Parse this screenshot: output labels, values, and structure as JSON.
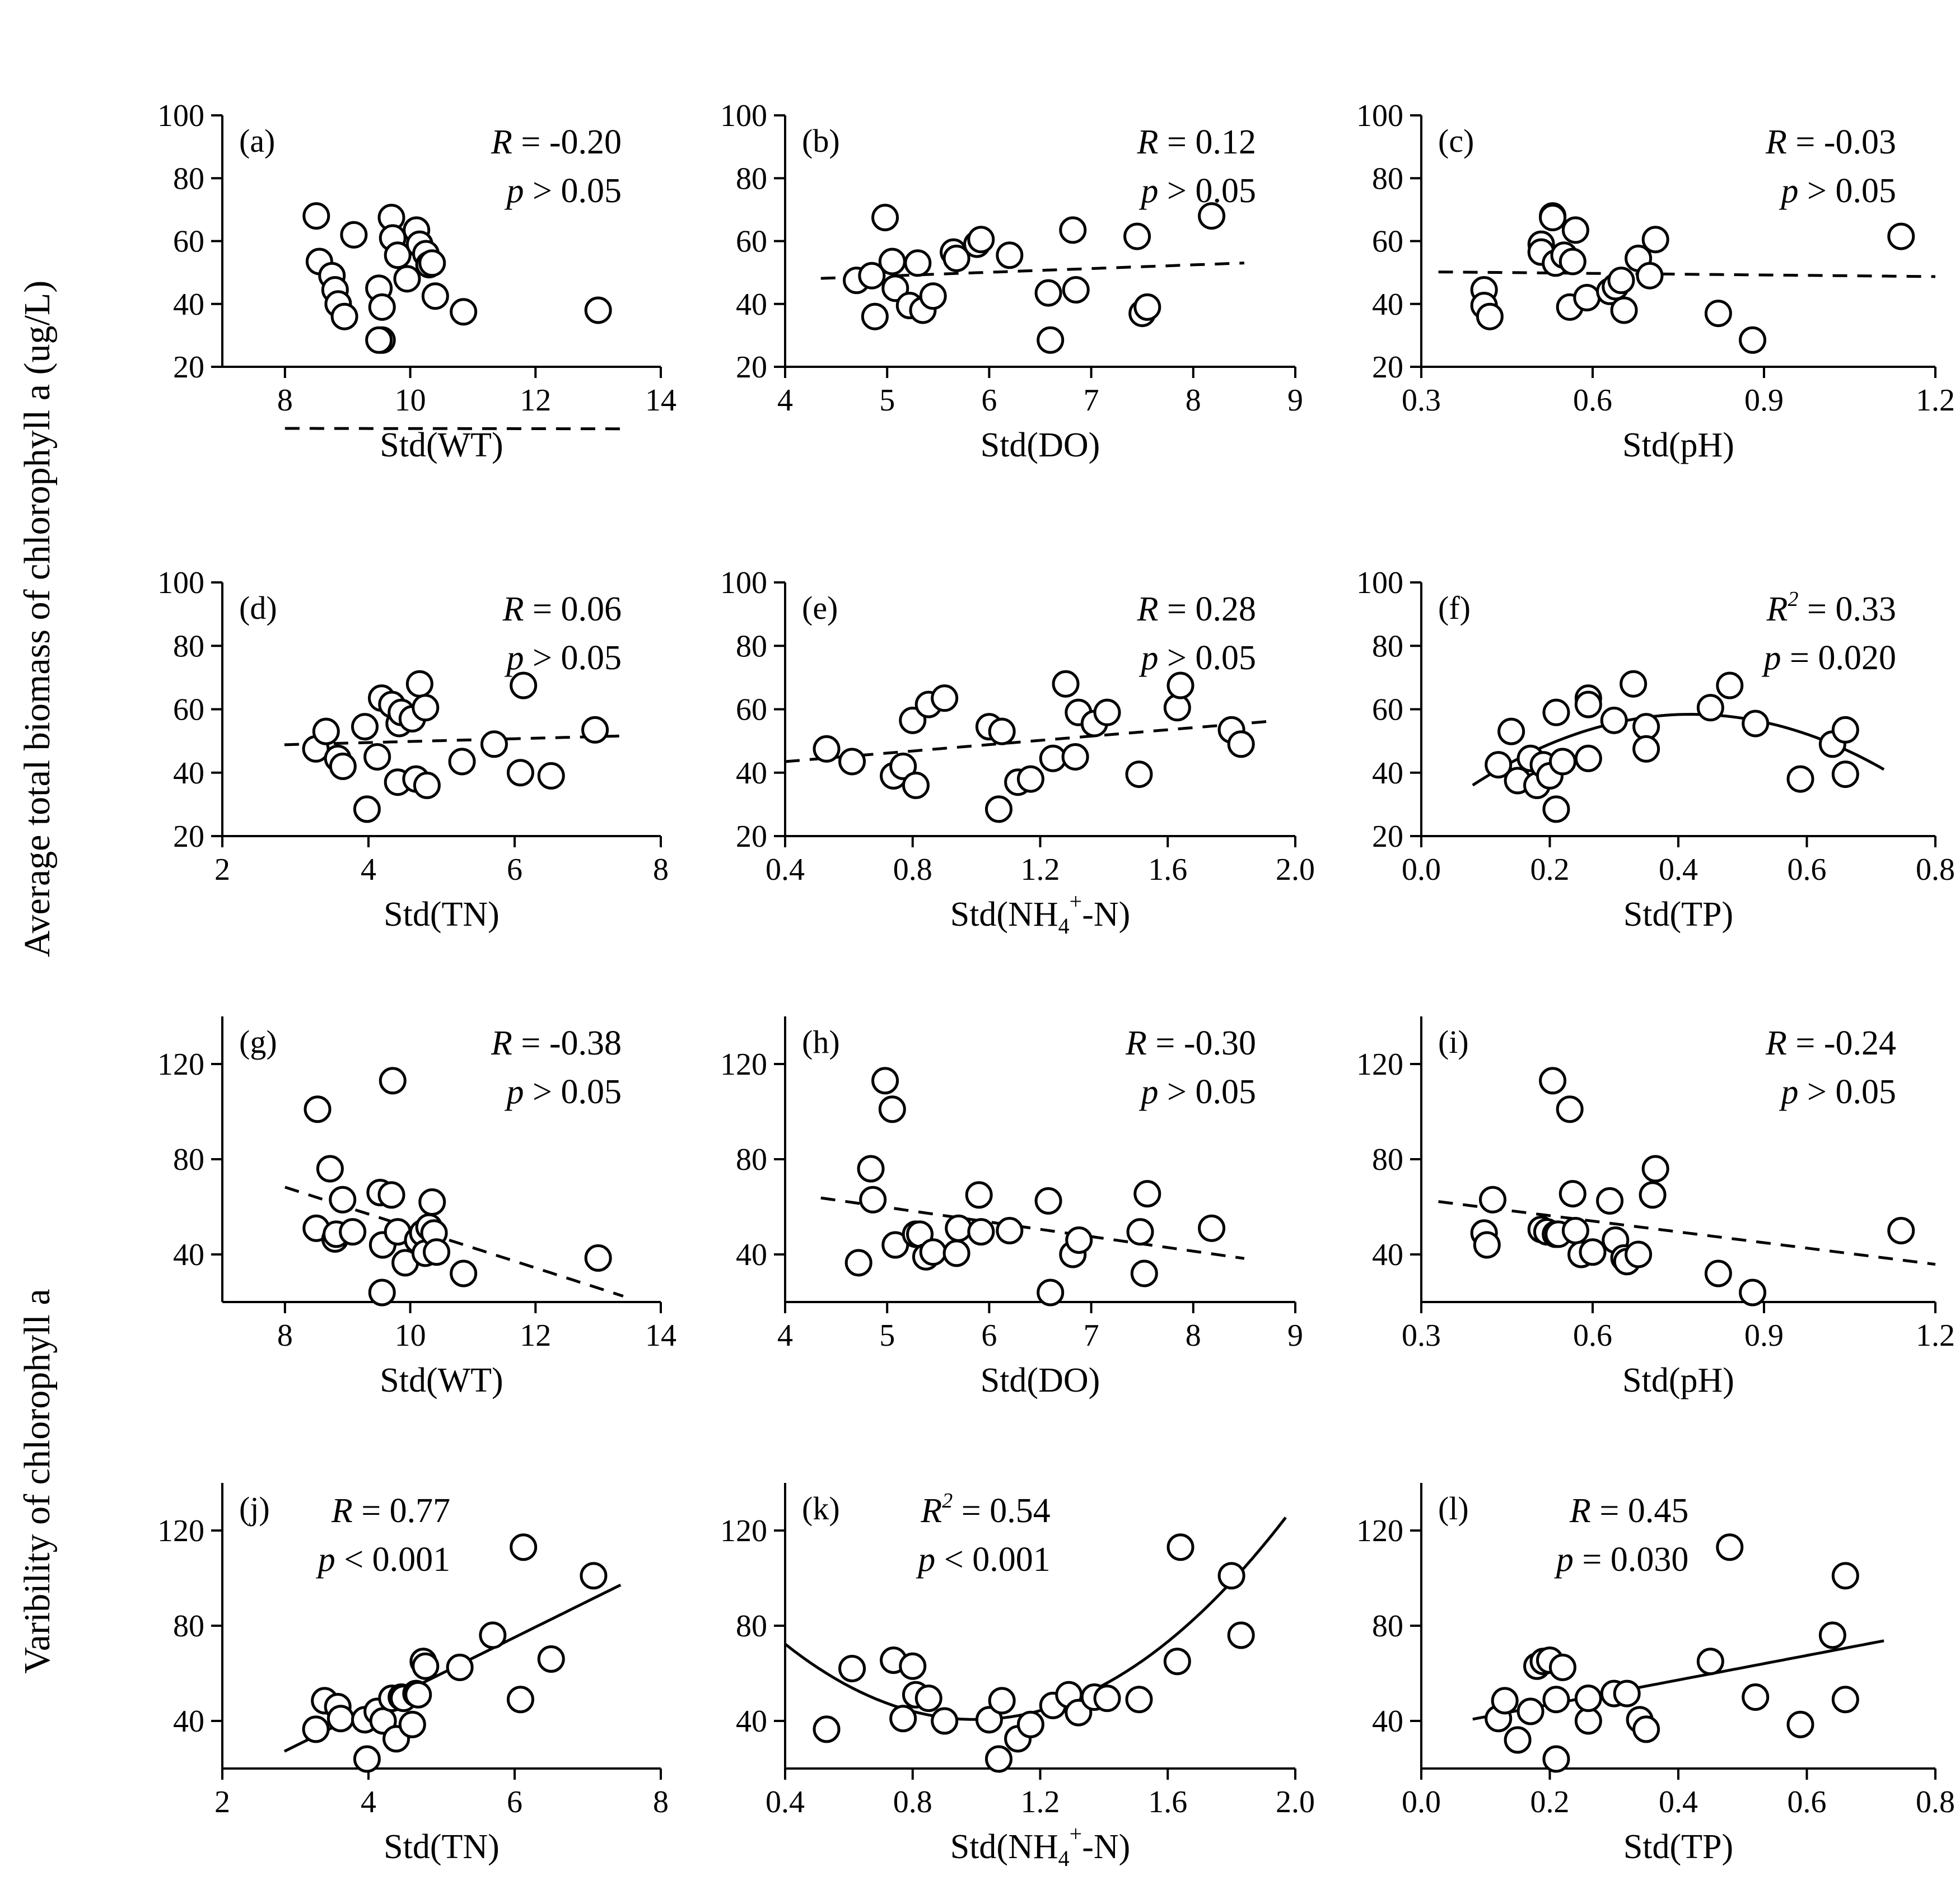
{
  "figure": {
    "ylabel_top": "Average total biomass of chlorophyll a (ug/L)",
    "ylabel_bottom": "Varibility of chlorophyll a"
  },
  "chart_data": [
    {
      "id": "a",
      "type": "scatter",
      "label": "(a)",
      "xlabel": "Std(WT)",
      "xlim": [
        7,
        14
      ],
      "ylim": [
        20,
        100
      ],
      "xticks": [
        8,
        10,
        12,
        14
      ],
      "xtick_labels": [
        "8",
        "10",
        "12",
        "14"
      ],
      "yticks": [
        20,
        40,
        60,
        80,
        100
      ],
      "ytick_labels": [
        "20",
        "40",
        "60",
        "80",
        "100"
      ],
      "stat1": "R = -0.20",
      "stat2": "p > 0.05",
      "x": [
        8.5,
        8.55,
        8.75,
        8.8,
        8.85,
        8.95,
        9.1,
        9.5,
        9.55,
        9.55,
        9.7,
        9.72,
        9.8,
        9.95,
        10.1,
        10.15,
        10.25,
        10.3,
        10.35,
        10.4,
        10.85,
        13.0,
        9.5
      ],
      "y": [
        68,
        53.5,
        49,
        44.5,
        40,
        36,
        62,
        45,
        39,
        28.5,
        67.5,
        61,
        55.5,
        48,
        63.5,
        59,
        56,
        52.5,
        53,
        42.5,
        37.5,
        38,
        28.5
      ],
      "fit": {
        "kind": "linear",
        "style": "dashed",
        "x_range": [
          8.0,
          13.4
        ],
        "coef": [
          0.585,
          -0.02274
        ]
      }
    },
    {
      "id": "b",
      "type": "scatter",
      "label": "(b)",
      "xlabel": "Std(DO)",
      "xlim": [
        4,
        9
      ],
      "ylim": [
        20,
        100
      ],
      "xticks": [
        4,
        5,
        6,
        7,
        8,
        9
      ],
      "xtick_labels": [
        "4",
        "5",
        "6",
        "7",
        "8",
        "9"
      ],
      "yticks": [
        20,
        40,
        60,
        80,
        100
      ],
      "ytick_labels": [
        "20",
        "40",
        "60",
        "80",
        "100"
      ],
      "stat1": "R = 0.12",
      "stat2": "p > 0.05",
      "x": [
        4.7,
        4.85,
        4.88,
        4.98,
        5.05,
        5.08,
        5.22,
        5.3,
        5.35,
        5.45,
        5.65,
        5.68,
        5.88,
        5.92,
        6.2,
        6.58,
        6.6,
        6.82,
        6.85,
        7.45,
        7.5,
        7.55,
        8.18
      ],
      "y": [
        47.5,
        49,
        36,
        67.5,
        53.5,
        45,
        39.5,
        53,
        38,
        42.5,
        56.5,
        54.5,
        59,
        60.5,
        55.5,
        43.5,
        28.5,
        63.5,
        44.5,
        61.5,
        37,
        39,
        68
      ],
      "fit": {
        "kind": "linear",
        "style": "dashed",
        "x_range": [
          4.35,
          8.5
        ],
        "coef": [
          43.0,
          1.18
        ]
      }
    },
    {
      "id": "c",
      "type": "scatter",
      "label": "(c)",
      "xlabel": "Std(pH)",
      "xlim": [
        0.3,
        1.2
      ],
      "ylim": [
        20,
        100
      ],
      "xticks": [
        0.3,
        0.6,
        0.9,
        1.2
      ],
      "xtick_labels": [
        "0.3",
        "0.6",
        "0.9",
        "1.2"
      ],
      "yticks": [
        20,
        40,
        60,
        80,
        100
      ],
      "ytick_labels": [
        "20",
        "40",
        "60",
        "80",
        "100"
      ],
      "stat1": "R = -0.03",
      "stat2": "p > 0.05",
      "x": [
        0.41,
        0.41,
        0.42,
        0.51,
        0.51,
        0.53,
        0.53,
        0.535,
        0.55,
        0.56,
        0.565,
        0.57,
        0.59,
        0.63,
        0.64,
        0.65,
        0.655,
        0.68,
        0.7,
        0.71,
        0.82,
        0.88,
        1.14
      ],
      "y": [
        44.5,
        39.5,
        36,
        59,
        56.5,
        68,
        67.5,
        53,
        55.5,
        39,
        53.5,
        63.5,
        42,
        44,
        45.5,
        47.5,
        38,
        54.5,
        49,
        60.5,
        37,
        28.5,
        61.5
      ],
      "fit": {
        "kind": "linear",
        "style": "dashed",
        "x_range": [
          0.33,
          1.2
        ],
        "coef": [
          50.75,
          -1.7
        ]
      }
    },
    {
      "id": "d",
      "type": "scatter",
      "label": "(d)",
      "xlabel": "Std(TN)",
      "xlim": [
        2,
        8
      ],
      "ylim": [
        20,
        100
      ],
      "xticks": [
        2,
        4,
        6,
        8
      ],
      "xtick_labels": [
        "2",
        "4",
        "6",
        "8"
      ],
      "yticks": [
        20,
        40,
        60,
        80,
        100
      ],
      "ytick_labels": [
        "20",
        "40",
        "60",
        "80",
        "100"
      ],
      "stat1": "R = 0.06",
      "stat2": "p > 0.05",
      "x": [
        3.28,
        3.42,
        3.58,
        3.65,
        3.95,
        3.98,
        4.12,
        4.18,
        4.32,
        4.4,
        4.42,
        4.45,
        4.6,
        4.65,
        4.7,
        4.78,
        4.8,
        5.28,
        5.72,
        6.08,
        6.12,
        6.5,
        7.1
      ],
      "y": [
        47.5,
        53,
        44.5,
        42,
        54.5,
        28.5,
        45,
        63.5,
        61.5,
        37,
        55.5,
        59,
        57,
        38,
        68,
        60.5,
        36,
        43.5,
        49,
        40,
        67.5,
        39,
        53.5
      ],
      "fit": {
        "kind": "linear",
        "style": "dashed",
        "x_range": [
          2.85,
          7.45
        ],
        "coef": [
          47.1,
          0.6
        ]
      }
    },
    {
      "id": "e",
      "type": "scatter",
      "label": "(e)",
      "xlabel": "Std(NH4+-N)",
      "xlim": [
        0.4,
        2.0
      ],
      "ylim": [
        20,
        100
      ],
      "xticks": [
        0.4,
        0.8,
        1.2,
        1.6,
        2.0
      ],
      "xtick_labels": [
        "0.4",
        "0.8",
        "1.2",
        "1.6",
        "2.0"
      ],
      "yticks": [
        20,
        40,
        60,
        80,
        100
      ],
      "ytick_labels": [
        "20",
        "40",
        "60",
        "80",
        "100"
      ],
      "stat1": "R = 0.28",
      "stat2": "p > 0.05",
      "x": [
        0.53,
        0.61,
        0.74,
        0.77,
        0.8,
        0.81,
        0.85,
        0.9,
        1.04,
        1.07,
        1.08,
        1.13,
        1.17,
        1.24,
        1.28,
        1.31,
        1.32,
        1.37,
        1.41,
        1.51,
        1.63,
        1.64,
        1.8,
        1.83
      ],
      "y": [
        47.5,
        43.5,
        39,
        42,
        56.5,
        36,
        61.5,
        63.5,
        54.5,
        28.5,
        53,
        37,
        38,
        44.5,
        68,
        45,
        59,
        55.5,
        59,
        39.5,
        60.5,
        67.5,
        53.5,
        49
      ],
      "fit": {
        "kind": "linear",
        "style": "dashed",
        "x_range": [
          0.4,
          1.93
        ],
        "coef": [
          40.15,
          8.36
        ]
      }
    },
    {
      "id": "f",
      "type": "scatter",
      "label": "(f)",
      "xlabel": "Std(TP)",
      "xlim": [
        0.0,
        0.8
      ],
      "ylim": [
        20,
        100
      ],
      "xticks": [
        0.0,
        0.2,
        0.4,
        0.6,
        0.8
      ],
      "xtick_labels": [
        "0.0",
        "0.2",
        "0.4",
        "0.6",
        "0.8"
      ],
      "yticks": [
        20,
        40,
        60,
        80,
        100
      ],
      "ytick_labels": [
        "20",
        "40",
        "60",
        "80",
        "100"
      ],
      "stat1": "R2 = 0.33",
      "stat2": "p = 0.020",
      "x": [
        0.12,
        0.14,
        0.15,
        0.17,
        0.18,
        0.19,
        0.2,
        0.21,
        0.21,
        0.22,
        0.26,
        0.26,
        0.26,
        0.3,
        0.33,
        0.35,
        0.35,
        0.45,
        0.48,
        0.52,
        0.59,
        0.64,
        0.66,
        0.66
      ],
      "y": [
        42.5,
        53,
        37.5,
        44.5,
        36,
        42.5,
        39,
        59,
        28.5,
        43.5,
        63.5,
        61.5,
        44.5,
        56.5,
        68,
        54.5,
        47.5,
        60.5,
        67.5,
        55.5,
        38,
        49,
        39.5,
        53.5
      ],
      "fit": {
        "kind": "quadratic",
        "style": "solid",
        "x_range": [
          0.08,
          0.72
        ],
        "coef": [
          24.3,
          162.4,
          -193.3
        ]
      }
    },
    {
      "id": "g",
      "type": "scatter",
      "label": "(g)",
      "xlabel": "Std(WT)",
      "xlim": [
        7,
        14
      ],
      "ylim": [
        20,
        140
      ],
      "xticks": [
        8,
        10,
        12,
        14
      ],
      "xtick_labels": [
        "8",
        "10",
        "12",
        "14"
      ],
      "yticks": [
        40,
        80,
        120
      ],
      "ytick_labels": [
        "40",
        "80",
        "120"
      ],
      "stat1": "R = -0.38",
      "stat2": "p > 0.05",
      "x": [
        8.5,
        8.52,
        8.72,
        8.8,
        8.82,
        8.92,
        9.08,
        9.52,
        9.55,
        9.56,
        9.7,
        9.72,
        9.8,
        9.92,
        10.12,
        10.2,
        10.24,
        10.3,
        10.35,
        10.38,
        10.42,
        10.85,
        13.0
      ],
      "y": [
        51,
        101,
        76,
        46.5,
        48.5,
        63,
        49.5,
        66,
        24,
        44,
        65,
        113,
        49.5,
        36.5,
        46,
        49,
        40.5,
        51.5,
        62,
        49,
        41,
        32,
        38.5
      ],
      "fit": {
        "kind": "linear",
        "style": "dashed",
        "x_range": [
          8.0,
          13.4
        ],
        "coef": [
          136.1,
          -8.48
        ]
      }
    },
    {
      "id": "h",
      "type": "scatter",
      "label": "(h)",
      "xlabel": "Std(DO)",
      "xlim": [
        4,
        9
      ],
      "ylim": [
        20,
        140
      ],
      "xticks": [
        4,
        5,
        6,
        7,
        8,
        9
      ],
      "xtick_labels": [
        "4",
        "5",
        "6",
        "7",
        "8",
        "9"
      ],
      "yticks": [
        40,
        80,
        120
      ],
      "ytick_labels": [
        "40",
        "80",
        "120"
      ],
      "stat1": "R = -0.30",
      "stat2": "p > 0.05",
      "x": [
        4.72,
        4.84,
        4.86,
        4.98,
        5.05,
        5.08,
        5.28,
        5.32,
        5.38,
        5.45,
        5.68,
        5.7,
        5.9,
        5.92,
        6.2,
        6.58,
        6.6,
        6.82,
        6.88,
        7.48,
        7.52,
        7.55,
        8.18
      ],
      "y": [
        36.5,
        76,
        63,
        113,
        101,
        44,
        48.5,
        48.5,
        39,
        41,
        40.5,
        51,
        65,
        49.5,
        50,
        62.5,
        24,
        40,
        46,
        49.5,
        32,
        65.5,
        51
      ],
      "fit": {
        "kind": "linear",
        "style": "dashed",
        "x_range": [
          4.35,
          8.5
        ],
        "coef": [
          90.4,
          -6.13
        ]
      }
    },
    {
      "id": "i",
      "type": "scatter",
      "label": "(i)",
      "xlabel": "Std(pH)",
      "xlim": [
        0.3,
        1.2
      ],
      "ylim": [
        20,
        140
      ],
      "xticks": [
        0.3,
        0.6,
        0.9,
        1.2
      ],
      "xtick_labels": [
        "0.3",
        "0.6",
        "0.9",
        "1.2"
      ],
      "yticks": [
        40,
        80,
        120
      ],
      "ytick_labels": [
        "40",
        "80",
        "120"
      ],
      "stat1": "R = -0.24",
      "stat2": "p > 0.05",
      "x": [
        0.41,
        0.415,
        0.425,
        0.51,
        0.52,
        0.53,
        0.535,
        0.54,
        0.56,
        0.565,
        0.57,
        0.58,
        0.6,
        0.63,
        0.64,
        0.655,
        0.66,
        0.68,
        0.705,
        0.71,
        0.82,
        0.88,
        1.14
      ],
      "y": [
        49,
        44,
        63,
        50.5,
        49.5,
        113,
        48.5,
        48.5,
        101,
        65.5,
        50,
        40,
        41,
        62.5,
        46,
        38.5,
        37,
        40,
        65,
        76,
        32,
        24,
        50
      ],
      "fit": {
        "kind": "linear",
        "style": "dashed",
        "x_range": [
          0.33,
          1.2
        ],
        "coef": [
          72.2,
          -30.3
        ]
      }
    },
    {
      "id": "j",
      "type": "scatter",
      "label": "(j)",
      "xlabel": "Std(TN)",
      "xlim": [
        2,
        8
      ],
      "ylim": [
        20,
        140
      ],
      "xticks": [
        2,
        4,
        6,
        8
      ],
      "xtick_labels": [
        "2",
        "4",
        "6",
        "8"
      ],
      "yticks": [
        40,
        80,
        120
      ],
      "ytick_labels": [
        "40",
        "80",
        "120"
      ],
      "stat1": "R = 0.77",
      "stat2": "p < 0.001",
      "x": [
        3.28,
        3.4,
        3.58,
        3.62,
        3.95,
        3.98,
        4.12,
        4.2,
        4.32,
        4.38,
        4.45,
        4.48,
        4.6,
        4.65,
        4.68,
        4.75,
        4.78,
        5.25,
        5.7,
        6.08,
        6.12,
        6.5,
        7.08
      ],
      "y": [
        36.5,
        48.5,
        46,
        41,
        40.5,
        24,
        44,
        40,
        49.5,
        32.5,
        50,
        49.5,
        38.5,
        51.5,
        51,
        65,
        63,
        62.5,
        76,
        49,
        113,
        66,
        101
      ],
      "fit": {
        "kind": "linear",
        "style": "solid",
        "x_range": [
          2.85,
          7.45
        ],
        "coef": [
          -16.1,
          15.2
        ]
      }
    },
    {
      "id": "k",
      "type": "scatter",
      "label": "(k)",
      "xlabel": "Std(NH4+-N)",
      "xlim": [
        0.4,
        2.0
      ],
      "ylim": [
        20,
        140
      ],
      "xticks": [
        0.4,
        0.8,
        1.2,
        1.6,
        2.0
      ],
      "xtick_labels": [
        "0.4",
        "0.8",
        "1.2",
        "1.6",
        "2.0"
      ],
      "yticks": [
        40,
        80,
        120
      ],
      "ytick_labels": [
        "40",
        "80",
        "120"
      ],
      "stat1": "R2 = 0.54",
      "stat2": "p < 0.001",
      "x": [
        0.53,
        0.61,
        0.74,
        0.77,
        0.8,
        0.81,
        0.85,
        0.9,
        1.04,
        1.07,
        1.08,
        1.13,
        1.17,
        1.24,
        1.29,
        1.32,
        1.37,
        1.41,
        1.51,
        1.63,
        1.64,
        1.8,
        1.83
      ],
      "y": [
        36.5,
        62,
        65.5,
        41,
        63,
        51,
        49.5,
        40,
        40.5,
        24,
        48.5,
        32.5,
        38.5,
        46.5,
        51,
        43.5,
        50,
        49.5,
        49,
        65,
        113,
        101,
        76
      ],
      "fit": {
        "kind": "quadratic",
        "style": "solid",
        "x_range": [
          0.4,
          1.97
        ],
        "coef": [
          129.2,
          -178.0,
          89.4
        ]
      }
    },
    {
      "id": "l",
      "type": "scatter",
      "label": "(l)",
      "xlabel": "Std(TP)",
      "xlim": [
        0.0,
        0.8
      ],
      "ylim": [
        20,
        140
      ],
      "xticks": [
        0.0,
        0.2,
        0.4,
        0.6,
        0.8
      ],
      "xtick_labels": [
        "0.0",
        "0.2",
        "0.4",
        "0.6",
        "0.8"
      ],
      "yticks": [
        40,
        80,
        120
      ],
      "ytick_labels": [
        "40",
        "80",
        "120"
      ],
      "stat1": "R = 0.45",
      "stat2": "p = 0.030",
      "x": [
        0.12,
        0.13,
        0.15,
        0.17,
        0.18,
        0.19,
        0.2,
        0.21,
        0.21,
        0.22,
        0.26,
        0.26,
        0.26,
        0.3,
        0.32,
        0.34,
        0.35,
        0.45,
        0.48,
        0.52,
        0.59,
        0.64,
        0.66,
        0.66
      ],
      "y": [
        41,
        48.5,
        32,
        44,
        63,
        65,
        65.5,
        49,
        24,
        62.5,
        49.5,
        40,
        49.5,
        51.5,
        51.5,
        40.5,
        36.5,
        65,
        113,
        50,
        38.5,
        76,
        101,
        49
      ],
      "fit": {
        "kind": "linear",
        "style": "solid",
        "x_range": [
          0.08,
          0.72
        ],
        "coef": [
          36.6,
          51.5
        ]
      }
    }
  ]
}
